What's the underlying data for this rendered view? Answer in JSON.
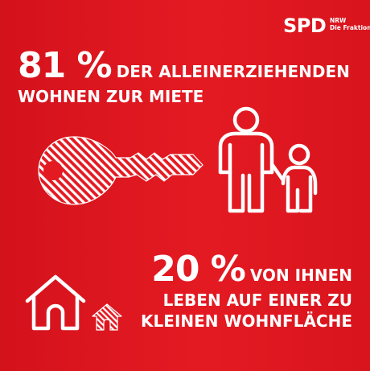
{
  "logo": {
    "mark": "SPD",
    "line1": "NRW",
    "line2": "Die Fraktion"
  },
  "stat_1": {
    "number": "81 %",
    "line1_rest": "DER ALLEINERZIEHENDEN",
    "line2": "WOHNEN ZUR MIETE"
  },
  "stat_2": {
    "number": "20 %",
    "line1_rest": "VON IHNEN",
    "line2": "LEBEN AUF EINER ZU",
    "line3": "KLEINEN WOHNFLÄCHE"
  },
  "colors": {
    "background": "#e41a22",
    "foreground": "#ffffff"
  },
  "icons": [
    "key-icon",
    "parent-child-icon",
    "large-house-icon",
    "small-house-icon"
  ]
}
